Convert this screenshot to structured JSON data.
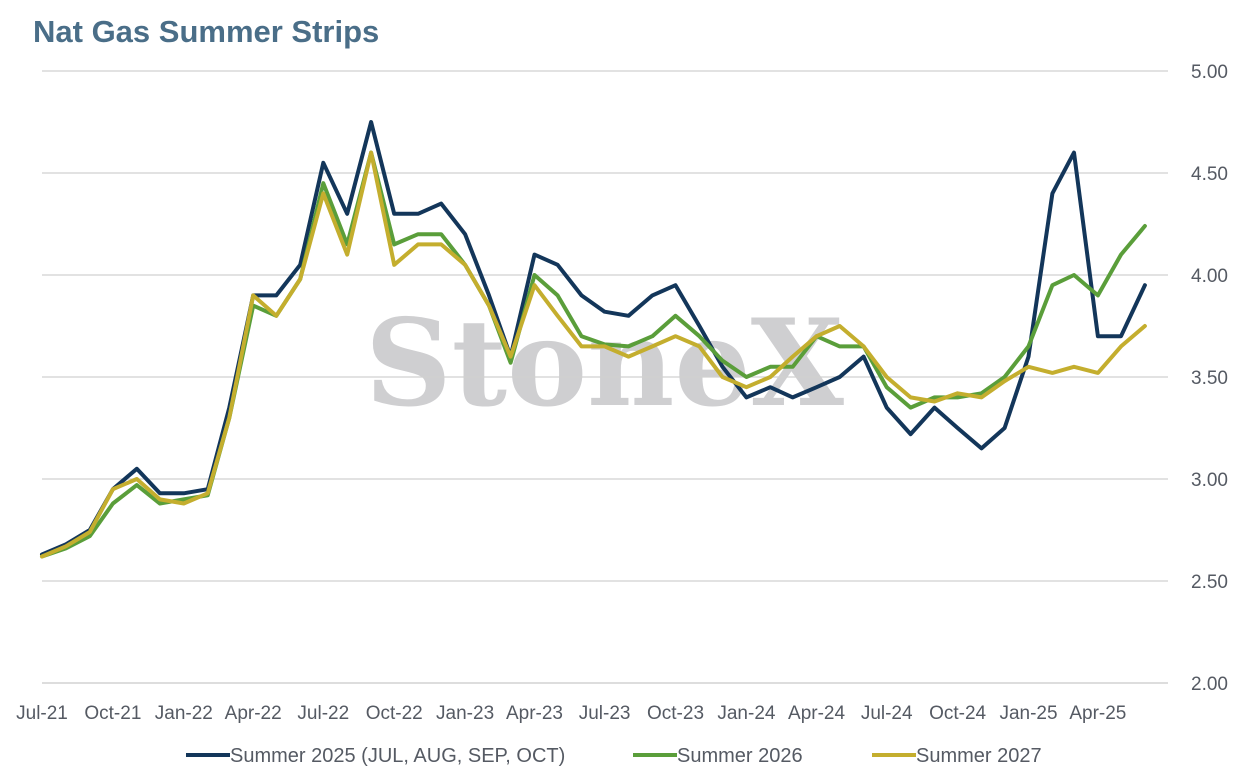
{
  "title": "Nat Gas Summer Strips",
  "watermark": "StoneX",
  "chart_data": {
    "type": "line",
    "title": "Nat Gas Summer Strips",
    "xlabel": "",
    "ylabel": "",
    "ylim": [
      2.0,
      5.0
    ],
    "yticks": [
      "5.00",
      "4.50",
      "4.00",
      "3.50",
      "3.00",
      "2.50",
      "2.00"
    ],
    "xlim": [
      "2021-07-01",
      "2025-07-01"
    ],
    "xticks": [
      "Jul-21",
      "Oct-21",
      "Jan-22",
      "Apr-22",
      "Jul-22",
      "Oct-22",
      "Jan-23",
      "Apr-23",
      "Jul-23",
      "Oct-23",
      "Jan-24",
      "Apr-24",
      "Jul-24",
      "Oct-24",
      "Jan-25",
      "Apr-25"
    ],
    "grid": true,
    "legend_position": "bottom",
    "x": [
      "2021-07-01",
      "2021-08-01",
      "2021-09-01",
      "2021-10-01",
      "2021-11-01",
      "2021-12-01",
      "2022-01-01",
      "2022-02-01",
      "2022-03-01",
      "2022-04-01",
      "2022-05-01",
      "2022-06-01",
      "2022-07-01",
      "2022-08-01",
      "2022-09-01",
      "2022-10-01",
      "2022-11-01",
      "2022-12-01",
      "2023-01-01",
      "2023-02-01",
      "2023-03-01",
      "2023-04-01",
      "2023-05-01",
      "2023-06-01",
      "2023-07-01",
      "2023-08-01",
      "2023-09-01",
      "2023-10-01",
      "2023-11-01",
      "2023-12-01",
      "2024-01-01",
      "2024-02-01",
      "2024-03-01",
      "2024-04-01",
      "2024-05-01",
      "2024-06-01",
      "2024-07-01",
      "2024-08-01",
      "2024-09-01",
      "2024-10-01",
      "2024-11-01",
      "2024-12-01",
      "2025-01-01",
      "2025-02-01",
      "2025-03-01",
      "2025-04-01",
      "2025-05-01",
      "2025-06-01"
    ],
    "series": [
      {
        "name": "Summer 2025 (JUL, AUG, SEP, OCT)",
        "color": "#13365a",
        "values": [
          2.63,
          2.68,
          2.75,
          2.95,
          3.05,
          2.93,
          2.93,
          2.95,
          3.35,
          3.9,
          3.9,
          4.05,
          4.55,
          4.3,
          4.75,
          4.3,
          4.3,
          4.35,
          4.2,
          3.9,
          3.6,
          4.1,
          4.05,
          3.9,
          3.82,
          3.8,
          3.9,
          3.95,
          3.75,
          3.55,
          3.4,
          3.45,
          3.4,
          3.45,
          3.5,
          3.6,
          3.35,
          3.22,
          3.35,
          3.25,
          3.15,
          3.25,
          3.6,
          4.4,
          4.6,
          3.7,
          3.7,
          3.95
        ]
      },
      {
        "name": "Summer 2026",
        "color": "#5a9e3a",
        "values": [
          2.62,
          2.66,
          2.72,
          2.88,
          2.97,
          2.88,
          2.9,
          2.92,
          3.3,
          3.85,
          3.8,
          3.98,
          4.45,
          4.15,
          4.6,
          4.15,
          4.2,
          4.2,
          4.05,
          3.85,
          3.57,
          4.0,
          3.9,
          3.7,
          3.66,
          3.65,
          3.7,
          3.8,
          3.7,
          3.58,
          3.5,
          3.55,
          3.55,
          3.7,
          3.65,
          3.65,
          3.45,
          3.35,
          3.4,
          3.4,
          3.42,
          3.5,
          3.65,
          3.95,
          4.0,
          3.9,
          4.1,
          4.24
        ]
      },
      {
        "name": "Summer 2027",
        "color": "#c4ae2e",
        "values": [
          2.62,
          2.67,
          2.74,
          2.95,
          3.0,
          2.9,
          2.88,
          2.93,
          3.3,
          3.9,
          3.8,
          3.98,
          4.4,
          4.1,
          4.6,
          4.05,
          4.15,
          4.15,
          4.05,
          3.85,
          3.6,
          3.95,
          3.8,
          3.65,
          3.65,
          3.6,
          3.65,
          3.7,
          3.65,
          3.5,
          3.45,
          3.5,
          3.6,
          3.7,
          3.75,
          3.65,
          3.5,
          3.4,
          3.38,
          3.42,
          3.4,
          3.48,
          3.55,
          3.52,
          3.55,
          3.52,
          3.65,
          3.75
        ]
      }
    ]
  }
}
